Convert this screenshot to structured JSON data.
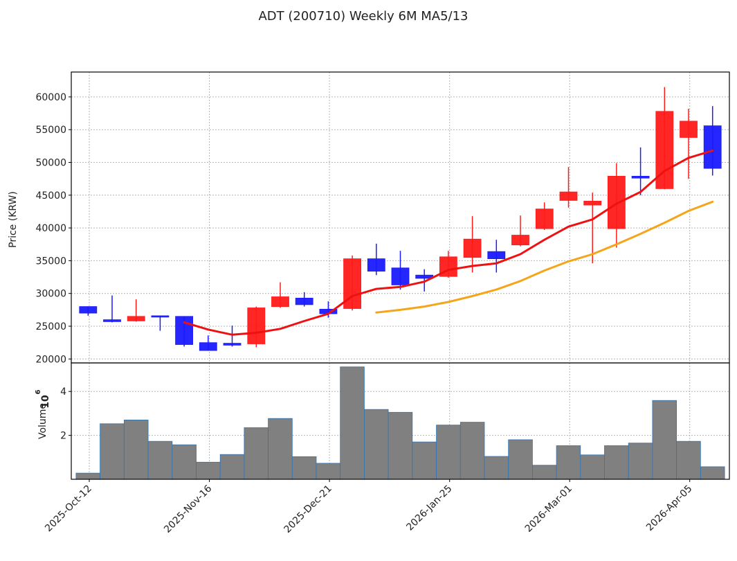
{
  "chart_data": {
    "type": "candlestick",
    "title": "ADT (200710) Weekly 6M  MA5/13",
    "price_panel": {
      "ylabel": "Price (KRW)",
      "ylim": [
        19400,
        63800
      ],
      "yticks": [
        20000,
        25000,
        30000,
        35000,
        40000,
        45000,
        50000,
        55000,
        60000
      ],
      "ytick_labels": [
        "20000",
        "25000",
        "30000",
        "35000",
        "40000",
        "45000",
        "50000",
        "55000",
        "60000"
      ],
      "grid": true
    },
    "volume_panel": {
      "ylabel": "Volume",
      "scale_label": "10",
      "scale_exponent": "6",
      "ylim": [
        0,
        5.3
      ],
      "yticks": [
        2,
        4
      ],
      "ytick_labels": [
        "2",
        "4"
      ],
      "grid": true
    },
    "xlim": [
      -0.7,
      26.7
    ],
    "xticks": [
      {
        "index": 0.05,
        "label": "2025-Oct-12"
      },
      {
        "index": 5.05,
        "label": "2025-Nov-16"
      },
      {
        "index": 10.05,
        "label": "2025-Dec-21"
      },
      {
        "index": 15.05,
        "label": "2026-Jan-25"
      },
      {
        "index": 20.05,
        "label": "2026-Mar-01"
      },
      {
        "index": 25.05,
        "label": "2026-Apr-05"
      }
    ],
    "colors": {
      "up": "#ff1a1a",
      "down": "#1a1aff",
      "ma5": "#ee1111",
      "ma13": "#f5a51a",
      "volume": "#808080",
      "volume_edge": "#2f74b5",
      "grid": "#b3b3b3"
    },
    "candles": [
      {
        "o": 28000,
        "h": 28000,
        "l": 26600,
        "c": 27000
      },
      {
        "o": 26000,
        "h": 29700,
        "l": 25600,
        "c": 25700
      },
      {
        "o": 25800,
        "h": 29100,
        "l": 25700,
        "c": 26500
      },
      {
        "o": 26600,
        "h": 26600,
        "l": 24300,
        "c": 26400
      },
      {
        "o": 26500,
        "h": 26500,
        "l": 21900,
        "c": 22200
      },
      {
        "o": 22500,
        "h": 23600,
        "l": 21300,
        "c": 21300
      },
      {
        "o": 22400,
        "h": 25100,
        "l": 21900,
        "c": 22100
      },
      {
        "o": 22300,
        "h": 28000,
        "l": 21800,
        "c": 27800
      },
      {
        "o": 28000,
        "h": 31700,
        "l": 27800,
        "c": 29500
      },
      {
        "o": 29300,
        "h": 30200,
        "l": 28000,
        "c": 28300
      },
      {
        "o": 27600,
        "h": 28800,
        "l": 26300,
        "c": 26900
      },
      {
        "o": 27700,
        "h": 35800,
        "l": 27400,
        "c": 35300
      },
      {
        "o": 35300,
        "h": 37600,
        "l": 32800,
        "c": 33400
      },
      {
        "o": 33900,
        "h": 36500,
        "l": 30600,
        "c": 31300
      },
      {
        "o": 32800,
        "h": 33700,
        "l": 30300,
        "c": 32300
      },
      {
        "o": 32600,
        "h": 36500,
        "l": 32400,
        "c": 35600
      },
      {
        "o": 35500,
        "h": 41800,
        "l": 33200,
        "c": 38300
      },
      {
        "o": 36400,
        "h": 38200,
        "l": 33200,
        "c": 35300
      },
      {
        "o": 37400,
        "h": 41900,
        "l": 37200,
        "c": 38900
      },
      {
        "o": 39900,
        "h": 43900,
        "l": 39700,
        "c": 42900
      },
      {
        "o": 44200,
        "h": 49300,
        "l": 43100,
        "c": 45500
      },
      {
        "o": 43500,
        "h": 45400,
        "l": 34600,
        "c": 44100
      },
      {
        "o": 39900,
        "h": 49900,
        "l": 37000,
        "c": 47900
      },
      {
        "o": 47900,
        "h": 52300,
        "l": 45000,
        "c": 47600
      },
      {
        "o": 46000,
        "h": 61500,
        "l": 45900,
        "c": 57800
      },
      {
        "o": 53800,
        "h": 58200,
        "l": 47500,
        "c": 56300
      },
      {
        "o": 55600,
        "h": 58600,
        "l": 48000,
        "c": 49100
      }
    ],
    "ma5": [
      [
        4,
        25600
      ],
      [
        5,
        24500
      ],
      [
        6,
        23700
      ],
      [
        7,
        24000
      ],
      [
        8,
        24600
      ],
      [
        9,
        25800
      ],
      [
        10,
        26900
      ],
      [
        11,
        29600
      ],
      [
        12,
        30700
      ],
      [
        13,
        31000
      ],
      [
        14,
        31800
      ],
      [
        15,
        33600
      ],
      [
        16,
        34200
      ],
      [
        17,
        34600
      ],
      [
        18,
        36000
      ],
      [
        19,
        38200
      ],
      [
        20,
        40200
      ],
      [
        21,
        41300
      ],
      [
        22,
        43700
      ],
      [
        23,
        45500
      ],
      [
        24,
        48700
      ],
      [
        25,
        50700
      ],
      [
        26,
        51800
      ]
    ],
    "ma13": [
      [
        12,
        27100
      ],
      [
        13,
        27500
      ],
      [
        14,
        28000
      ],
      [
        15,
        28700
      ],
      [
        16,
        29600
      ],
      [
        17,
        30600
      ],
      [
        18,
        31900
      ],
      [
        19,
        33500
      ],
      [
        20,
        34900
      ],
      [
        21,
        36000
      ],
      [
        22,
        37500
      ],
      [
        23,
        39100
      ],
      [
        24,
        40800
      ],
      [
        25,
        42600
      ],
      [
        26,
        44000
      ]
    ],
    "volumes": [
      0.28,
      2.53,
      2.7,
      1.73,
      1.57,
      0.78,
      1.13,
      2.35,
      2.77,
      1.03,
      0.73,
      5.12,
      3.18,
      3.05,
      1.7,
      2.47,
      2.6,
      1.04,
      1.8,
      0.64,
      1.53,
      1.11,
      1.53,
      1.65,
      3.59,
      1.73,
      0.57
    ]
  }
}
